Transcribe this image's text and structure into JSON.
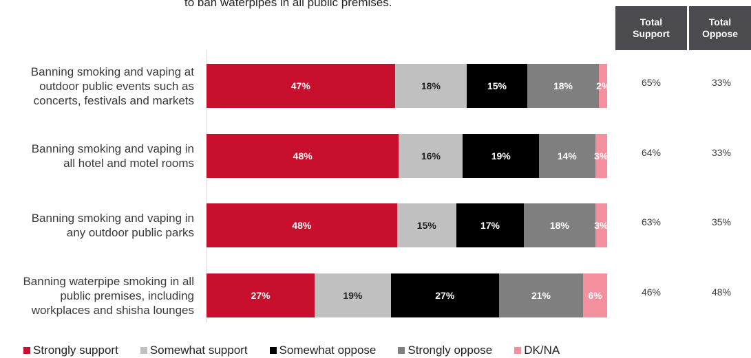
{
  "title_fragment": "to ban waterpipes in all public premises.",
  "headers": {
    "total_support": "Total\nSupport",
    "total_oppose": "Total\nOppose"
  },
  "chart_data": {
    "type": "bar",
    "orientation": "horizontal-stacked-100",
    "categories": [
      "Banning smoking and vaping at\noutdoor public events such as\nconcerts, festivals and markets",
      "Banning smoking and vaping in\nall hotel and motel rooms",
      "Banning smoking and vaping in\nany outdoor public parks",
      "Banning waterpipe smoking in all\npublic premises, including\nworkplaces and shisha lounges"
    ],
    "series": [
      {
        "name": "Strongly support",
        "color": "#c8102e",
        "text_color": "#ffffff",
        "values": [
          47,
          48,
          48,
          27
        ],
        "labels": [
          "47%",
          "48%",
          "48%",
          "27%"
        ]
      },
      {
        "name": "Somewhat support",
        "color": "#c0c0c0",
        "text_color": "#222222",
        "values": [
          18,
          16,
          15,
          19
        ],
        "labels": [
          "18%",
          "16%",
          "15%",
          "19%"
        ]
      },
      {
        "name": "Somewhat oppose",
        "color": "#000000",
        "text_color": "#ffffff",
        "values": [
          15,
          19,
          17,
          27
        ],
        "labels": [
          "15%",
          "19%",
          "17%",
          "27%"
        ]
      },
      {
        "name": "Strongly oppose",
        "color": "#7f7f7f",
        "text_color": "#ffffff",
        "values": [
          18,
          14,
          18,
          21
        ],
        "labels": [
          "18%",
          "14%",
          "18%",
          "21%"
        ]
      },
      {
        "name": "DK/NA",
        "color": "#f4909e",
        "text_color": "#ffffff",
        "values": [
          2,
          3,
          3,
          6
        ],
        "labels": [
          "2%",
          "3%",
          "3%",
          "6%"
        ]
      }
    ],
    "total_support": [
      "65%",
      "64%",
      "63%",
      "46%"
    ],
    "total_oppose": [
      "33%",
      "33%",
      "35%",
      "48%"
    ],
    "legend_position": "bottom",
    "grid": false
  }
}
